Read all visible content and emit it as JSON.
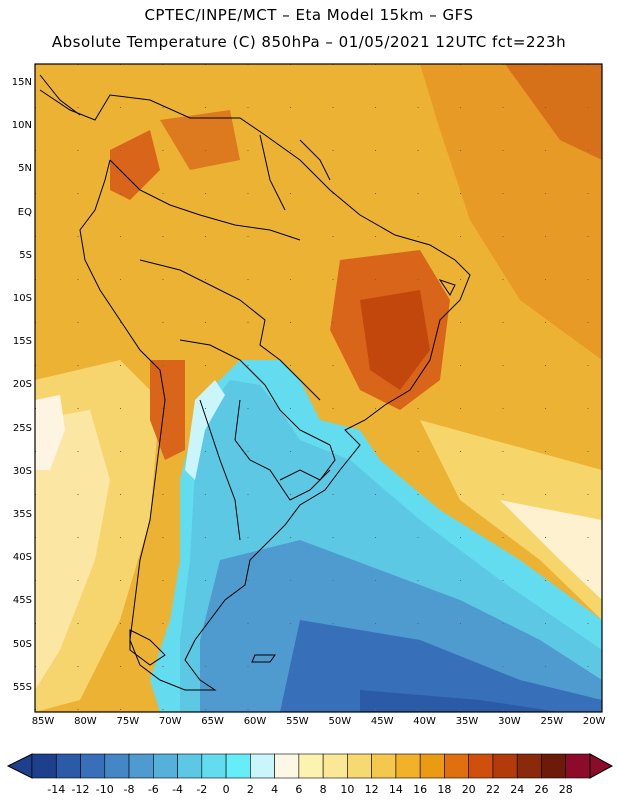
{
  "header": {
    "line1": "CPTEC/INPE/MCT –  Eta Model 15km – GFS",
    "line2": "Absolute Temperature (C) 850hPa – 01/05/2021 12UTC fct=223h"
  },
  "map": {
    "region": "South America",
    "lat_labels": [
      "15N",
      "10N",
      "5N",
      "EQ",
      "5S",
      "10S",
      "15S",
      "20S",
      "25S",
      "30S",
      "35S",
      "40S",
      "45S",
      "50S",
      "55S"
    ],
    "lon_labels": [
      "85W",
      "80W",
      "75W",
      "70W",
      "65W",
      "60W",
      "55W",
      "50W",
      "45W",
      "40W",
      "35W",
      "30W",
      "25W",
      "20W"
    ]
  },
  "colorbar": {
    "labels": [
      "-14",
      "-12",
      "-10",
      "-8",
      "-6",
      "-4",
      "-2",
      "0",
      "2",
      "4",
      "6",
      "8",
      "10",
      "12",
      "14",
      "16",
      "18",
      "20",
      "22",
      "24",
      "26",
      "28"
    ],
    "colors": [
      "#1e3f8c",
      "#2b5aa6",
      "#3770b8",
      "#4586c6",
      "#4f9bd0",
      "#56b1da",
      "#5dc8e4",
      "#62dcee",
      "#66eef8",
      "#c9f5fb",
      "#fdf8e6",
      "#fcf3b0",
      "#fae896",
      "#f7d972",
      "#f4c84f",
      "#f1b12b",
      "#eb9a14",
      "#e0700f",
      "#cf4f0c",
      "#b33a0a",
      "#8a2a0a",
      "#6e1a0a",
      "#8c0a2a"
    ]
  },
  "colors": {
    "ocean_warm": "#ecb233",
    "land_warm": "#e9a22a",
    "hot": "#cf5a14",
    "cold_ocean": "#3f7fc3",
    "cyan": "#62dcee"
  }
}
